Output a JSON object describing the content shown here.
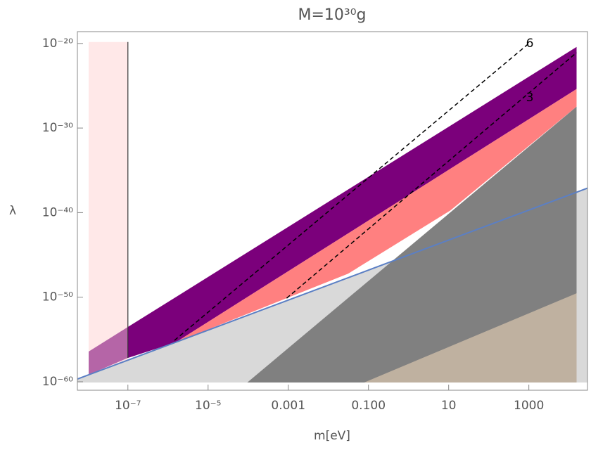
{
  "chart_data": {
    "type": "region",
    "title": "M=10³⁰g",
    "x_label": "m[eV]",
    "y_label": "λ",
    "x_log": true,
    "y_log": true,
    "xlim": [
      5.5e-09,
      29000.0
    ],
    "ylim": [
      1e-61,
      2.5e-19
    ],
    "xticks": [
      {
        "value": 1e-07,
        "label": "10⁻⁷"
      },
      {
        "value": 1e-05,
        "label": "10⁻⁵"
      },
      0.001,
      {
        "value": 0.1,
        "label": "0.100"
      },
      10,
      1000
    ],
    "yticks": [
      {
        "value": 1e-20,
        "label": "10⁻²⁰"
      },
      {
        "value": 1e-30,
        "label": "10⁻³⁰"
      },
      {
        "value": 1e-40,
        "label": "10⁻⁴⁰"
      },
      {
        "value": 1e-50,
        "label": "10⁻⁵⁰"
      },
      {
        "value": 1e-60,
        "label": "10⁻⁶⁰"
      }
    ],
    "regions": [
      {
        "color": "#ffe8e8",
        "x": [
          1.05e-08,
          1e-07,
          1e-07,
          1.05e-08
        ],
        "y": [
          1.5e-20,
          1.5e-20,
          8.3e-61,
          8.3e-61
        ]
      },
      {
        "color": "#d9d9d9",
        "x": [
          5.5e-09,
          29000.0,
          29000.0,
          5.5e-09
        ],
        "y": [
          2.1e-60,
          7.9e-38,
          8.3e-61,
          8.3e-61
        ]
      },
      {
        "color": "#b565a7",
        "x": [
          1.05e-08,
          1e-07,
          1e-07,
          1.05e-08
        ],
        "y": [
          3.7e-57,
          3e-54,
          6.6e-58,
          6.8e-60
        ]
      },
      {
        "color": "#7b007b",
        "x": [
          1e-07,
          15500,
          15500,
          1.55e-06,
          1e-07
        ],
        "y": [
          3e-54,
          3.9e-21,
          4.1e-26,
          4.5e-56,
          6.6e-58
        ]
      },
      {
        "color": "#ff8080",
        "x": [
          1.55e-06,
          15500,
          15500,
          11,
          0.031
        ],
        "y": [
          4.5e-56,
          4.1e-26,
          3.4e-28,
          1.8e-40,
          6e-48
        ]
      },
      {
        "color": "#ff0000",
        "x": [
          0.031,
          11,
          0.13
        ],
        "y": [
          6e-48,
          1.8e-40,
          4.1e-46
        ]
      },
      {
        "color": "#808080",
        "x": [
          9.5e-05,
          15500,
          15500
        ],
        "y": [
          8.3e-61,
          3.4e-28,
          8.3e-61
        ]
      },
      {
        "color": "#bfb1a0",
        "x": [
          0.078,
          15500,
          15500
        ],
        "y": [
          8.3e-61,
          2.9e-50,
          8.3e-61
        ]
      }
    ],
    "lines": [
      {
        "color": "#5b7fc4",
        "x": [
          5.5e-09,
          29000.0
        ],
        "y": [
          2.1e-60,
          7.9e-38
        ]
      },
      {
        "color": "#333333",
        "x": [
          1e-07,
          1e-07
        ],
        "y": [
          1.5e-20,
          6.6e-58
        ]
      }
    ],
    "contours": [
      {
        "label": "6",
        "x": [
          1.45e-06,
          1000
        ],
        "y": [
          7.9e-56,
          1e-20
        ]
      },
      {
        "label": "3",
        "x": [
          0.00091,
          15500
        ],
        "y": [
          7.6e-51,
          8.3e-22
        ]
      }
    ]
  }
}
